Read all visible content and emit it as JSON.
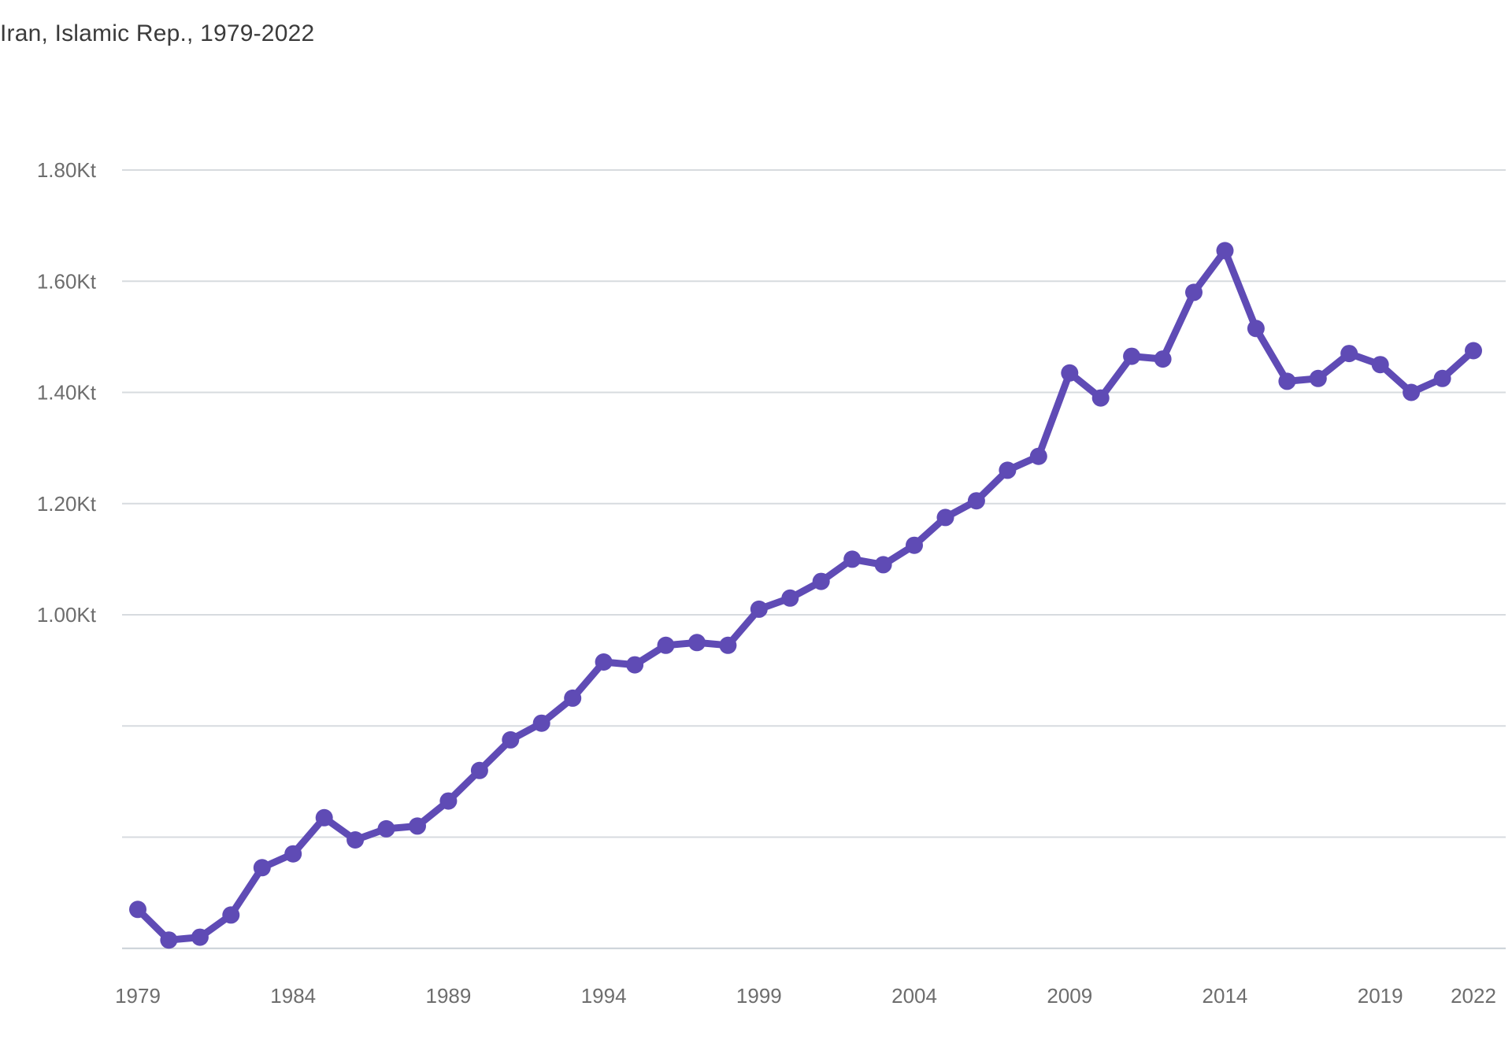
{
  "page": {
    "title": "Iran, Islamic Rep., 1979-2022"
  },
  "chart_data": {
    "type": "line",
    "title": "Iran, Islamic Rep., 1979-2022",
    "xlabel": "",
    "ylabel": "",
    "unit": "Kt",
    "legend": "none",
    "grid": "horizontal",
    "ylim": [
      0.4,
      1.8
    ],
    "x_range": [
      1979,
      2022
    ],
    "line_color": "#5f4bb5",
    "gridline_color": "#d7dbdf",
    "baseline_color": "#c9d0d6",
    "title_color": "#3b3b3b",
    "tick_color": "#6d6d6d",
    "x": [
      1979,
      1980,
      1981,
      1982,
      1983,
      1984,
      1985,
      1986,
      1987,
      1988,
      1989,
      1990,
      1991,
      1992,
      1993,
      1994,
      1995,
      1996,
      1997,
      1998,
      1999,
      2000,
      2001,
      2002,
      2003,
      2004,
      2005,
      2006,
      2007,
      2008,
      2009,
      2010,
      2011,
      2012,
      2013,
      2014,
      2015,
      2016,
      2017,
      2018,
      2019,
      2020,
      2021,
      2022
    ],
    "values": [
      0.47,
      0.415,
      0.42,
      0.46,
      0.545,
      0.57,
      0.635,
      0.595,
      0.615,
      0.62,
      0.665,
      0.72,
      0.775,
      0.805,
      0.85,
      0.915,
      0.91,
      0.945,
      0.95,
      0.945,
      1.01,
      1.03,
      1.06,
      1.1,
      1.09,
      1.125,
      1.175,
      1.205,
      1.26,
      1.285,
      1.435,
      1.39,
      1.465,
      1.46,
      1.58,
      1.655,
      1.515,
      1.42,
      1.425,
      1.47,
      1.45,
      1.4,
      1.425,
      1.475
    ],
    "x_ticks": [
      {
        "year": 1979,
        "label": "1979"
      },
      {
        "year": 1984,
        "label": "1984"
      },
      {
        "year": 1989,
        "label": "1989"
      },
      {
        "year": 1994,
        "label": "1994"
      },
      {
        "year": 1999,
        "label": "1999"
      },
      {
        "year": 2004,
        "label": "2004"
      },
      {
        "year": 2009,
        "label": "2009"
      },
      {
        "year": 2014,
        "label": "2014"
      },
      {
        "year": 2019,
        "label": "2019"
      },
      {
        "year": 2022,
        "label": "2022"
      }
    ],
    "y_ticks": [
      {
        "value": 1.8,
        "label": "1.80Kt"
      },
      {
        "value": 1.6,
        "label": "1.60Kt"
      },
      {
        "value": 1.4,
        "label": "1.40Kt"
      },
      {
        "value": 1.2,
        "label": "1.20Kt"
      },
      {
        "value": 1.0,
        "label": "1.00Kt"
      },
      {
        "value": 0.8,
        "label": ""
      },
      {
        "value": 0.6,
        "label": ""
      },
      {
        "value": 0.4,
        "label": ""
      }
    ]
  }
}
